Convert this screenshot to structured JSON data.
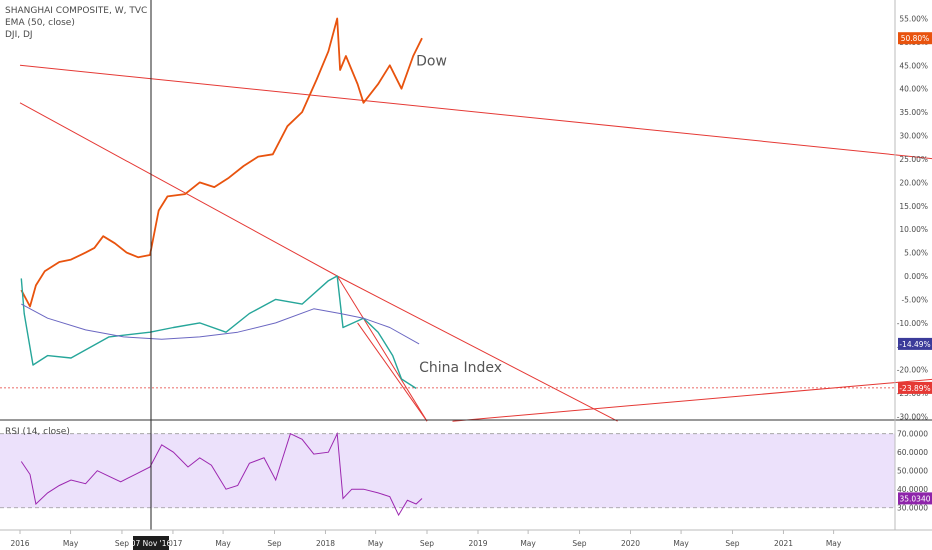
{
  "chart_data": {
    "type": "line",
    "title": "SHANGHAI COMPOSITE, W, TVC",
    "legend_items": [
      "SHANGHAI COMPOSITE, W, TVC",
      "EMA (50, close)",
      "DJI, DJ"
    ],
    "y_axis_ticks": [
      "55.00%",
      "50.00%",
      "45.00%",
      "40.00%",
      "35.00%",
      "30.00%",
      "25.00%",
      "20.00%",
      "15.00%",
      "10.00%",
      "5.00%",
      "0.00%",
      "-5.00%",
      "-10.00%",
      "-15.00%",
      "-20.00%",
      "-25.00%",
      "-30.00%"
    ],
    "ylim": [
      -30,
      55
    ],
    "x_axis_ticks": [
      "2016",
      "May",
      "Sep",
      "2017",
      "May",
      "Sep",
      "2018",
      "May",
      "Sep",
      "2019",
      "May",
      "Sep",
      "2020",
      "May",
      "Sep",
      "2021",
      "May"
    ],
    "crosshair_label": "07 Nov '16",
    "annotations": [
      "Dow",
      "China Index"
    ],
    "badges": {
      "dow": "50.80%",
      "ema": "-14.49%",
      "china": "-23.89%",
      "rsi": "35.0340"
    },
    "series": [
      {
        "name": "DJI, DJ",
        "color": "#e8530e",
        "x": [
          "2016-01-04",
          "2016-01-25",
          "2016-02-08",
          "2016-02-29",
          "2016-04-04",
          "2016-05-02",
          "2016-06-06",
          "2016-06-27",
          "2016-07-18",
          "2016-08-15",
          "2016-09-12",
          "2016-10-10",
          "2016-11-07",
          "2016-11-28",
          "2016-12-19",
          "2017-01-30",
          "2017-03-06",
          "2017-04-10",
          "2017-05-15",
          "2017-06-19",
          "2017-07-24",
          "2017-08-28",
          "2017-10-02",
          "2017-11-06",
          "2017-12-11",
          "2018-01-08",
          "2018-01-29",
          "2018-02-05",
          "2018-02-19",
          "2018-03-19",
          "2018-04-02",
          "2018-05-07",
          "2018-06-04",
          "2018-07-02",
          "2018-07-30",
          "2018-08-20"
        ],
        "values": [
          -3.0,
          -6.5,
          -2.0,
          1.0,
          3.0,
          3.5,
          5.0,
          6.0,
          8.5,
          7.0,
          5.0,
          4.0,
          4.5,
          14.0,
          17.0,
          17.5,
          20.0,
          19.0,
          21.0,
          23.5,
          25.5,
          26.0,
          32.0,
          35.0,
          42.0,
          48.0,
          55.0,
          44.0,
          47.0,
          41.0,
          37.0,
          41.0,
          45.0,
          40.0,
          47.0,
          50.8
        ]
      },
      {
        "name": "SHANGHAI COMPOSITE",
        "color": "#26a69a",
        "x": [
          "2016-01-04",
          "2016-01-11",
          "2016-02-01",
          "2016-03-07",
          "2016-05-02",
          "2016-08-01",
          "2016-11-07",
          "2017-01-02",
          "2017-03-06",
          "2017-05-08",
          "2017-07-03",
          "2017-09-04",
          "2017-11-06",
          "2018-01-08",
          "2018-01-29",
          "2018-02-12",
          "2018-04-02",
          "2018-05-07",
          "2018-06-11",
          "2018-07-02",
          "2018-08-06"
        ],
        "values": [
          -0.5,
          -8.0,
          -19.0,
          -17.0,
          -17.5,
          -13.0,
          -12.0,
          -11.0,
          -10.0,
          -12.0,
          -8.0,
          -5.0,
          -6.0,
          -1.0,
          0.0,
          -11.0,
          -9.0,
          -12.0,
          -17.0,
          -22.0,
          -24.0
        ]
      },
      {
        "name": "EMA (50, close)",
        "color": "#6b67c2",
        "x": [
          "2016-01-04",
          "2016-03-07",
          "2016-06-06",
          "2016-09-05",
          "2016-12-05",
          "2017-03-06",
          "2017-06-05",
          "2017-09-04",
          "2017-12-04",
          "2018-02-05",
          "2018-04-02",
          "2018-06-04",
          "2018-08-13"
        ],
        "values": [
          -6.0,
          -9.0,
          -11.5,
          -13.0,
          -13.5,
          -13.0,
          -12.0,
          -10.0,
          -7.0,
          -8.0,
          -9.0,
          -11.0,
          -14.5
        ]
      }
    ],
    "trendlines": [
      {
        "points": [
          [
            "2016-01-01",
            45.0
          ],
          [
            "2022-01-01",
            25.0
          ]
        ]
      },
      {
        "points": [
          [
            "2016-01-01",
            37.0
          ],
          [
            "2018-01-29",
            0.0
          ],
          [
            "2019-12-01",
            -31.0
          ]
        ]
      },
      {
        "points": [
          [
            "2018-01-29",
            0.0
          ],
          [
            "2018-09-01",
            -31.0
          ]
        ]
      },
      {
        "points": [
          [
            "2018-03-19",
            -10.0
          ],
          [
            "2018-09-01",
            -31.0
          ]
        ]
      },
      {
        "points": [
          [
            "2018-11-01",
            -31.0
          ],
          [
            "2022-01-01",
            -22.0
          ]
        ]
      }
    ],
    "horizontal_line": -23.89,
    "rsi": {
      "label": "RSI (14, close)",
      "ticks": [
        "70.0000",
        "60.0000",
        "50.0000",
        "40.0000",
        "30.0000"
      ],
      "ylim": [
        25,
        72
      ],
      "bands": [
        70,
        30
      ],
      "x": [
        "2016-01-04",
        "2016-01-25",
        "2016-02-08",
        "2016-03-07",
        "2016-04-04",
        "2016-05-02",
        "2016-06-06",
        "2016-07-04",
        "2016-08-01",
        "2016-08-29",
        "2016-10-03",
        "2016-11-07",
        "2016-12-05",
        "2017-01-02",
        "2017-02-06",
        "2017-03-06",
        "2017-04-03",
        "2017-05-08",
        "2017-06-05",
        "2017-07-03",
        "2017-08-07",
        "2017-09-04",
        "2017-10-09",
        "2017-11-06",
        "2017-12-04",
        "2018-01-08",
        "2018-01-29",
        "2018-02-12",
        "2018-03-05",
        "2018-04-02",
        "2018-05-07",
        "2018-06-04",
        "2018-06-25",
        "2018-07-16",
        "2018-08-06",
        "2018-08-20"
      ],
      "values": [
        55,
        48,
        32,
        38,
        42,
        45,
        43,
        50,
        47,
        44,
        48,
        52,
        64,
        60,
        52,
        57,
        53,
        40,
        42,
        54,
        57,
        45,
        70,
        67,
        59,
        60,
        70,
        35,
        40,
        40,
        38,
        36,
        26,
        34,
        32,
        35
      ]
    }
  }
}
